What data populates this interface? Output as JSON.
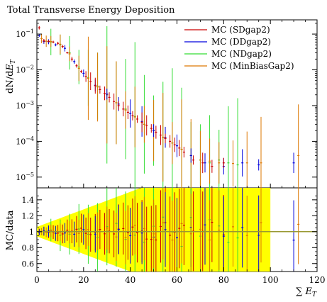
{
  "chart_data": [
    {
      "type": "scatter",
      "title": "Total Transverse Energy Deposition",
      "ylabel": "dN/dE_T",
      "yscale": "log",
      "xlim": [
        0,
        120
      ],
      "ylim": [
        5e-06,
        0.25
      ],
      "y_tick_labels": [
        "10^-5",
        "10^-4",
        "10^-3",
        "10^-2",
        "10^-1"
      ],
      "legend_position": "top-right",
      "series": [
        {
          "name": "MC (SDgap2)",
          "color": "#cc0000",
          "points": [
            [
              1,
              0.15
            ],
            [
              3,
              0.065
            ],
            [
              5,
              0.063
            ],
            [
              7,
              0.06
            ],
            [
              9,
              0.055
            ],
            [
              11,
              0.045
            ],
            [
              13,
              0.03
            ],
            [
              15,
              0.02
            ],
            [
              17,
              0.013
            ],
            [
              19,
              0.009
            ],
            [
              21,
              0.0065
            ],
            [
              23,
              0.0048
            ],
            [
              25,
              0.0036
            ],
            [
              27,
              0.0028
            ],
            [
              29,
              0.0022
            ],
            [
              31,
              0.0017
            ],
            [
              33,
              0.0013
            ],
            [
              35,
              0.001
            ],
            [
              37,
              0.0008
            ],
            [
              39,
              0.00065
            ],
            [
              41,
              0.00052
            ],
            [
              43,
              0.00042
            ],
            [
              45,
              0.00034
            ],
            [
              47,
              0.00028
            ],
            [
              49,
              0.00023
            ],
            [
              51,
              0.00018
            ],
            [
              53,
              0.00015
            ],
            [
              55,
              0.00012
            ],
            [
              57,
              0.0001
            ],
            [
              59,
              8e-05
            ],
            [
              61,
              6.5e-05
            ],
            [
              63,
              5e-05
            ],
            [
              67,
              3e-05
            ],
            [
              71,
              2.5e-05
            ],
            [
              75,
              2e-05
            ],
            [
              80,
              2.5e-05
            ]
          ],
          "err": 0.12
        },
        {
          "name": "MC (DDgap2)",
          "color": "#0000dd",
          "points": [
            [
              1,
              0.09
            ],
            [
              3,
              0.062
            ],
            [
              5,
              0.061
            ],
            [
              8,
              0.05
            ],
            [
              12,
              0.04
            ],
            [
              16,
              0.017
            ],
            [
              20,
              0.008
            ],
            [
              25,
              0.0037
            ],
            [
              30,
              0.0021
            ],
            [
              35,
              0.0011
            ],
            [
              40,
              0.0006
            ],
            [
              45,
              0.00036
            ],
            [
              50,
              0.0002
            ],
            [
              55,
              0.00013
            ],
            [
              60,
              7.5e-05
            ],
            [
              66,
              4e-05
            ],
            [
              72,
              2.5e-05
            ],
            [
              80,
              2e-05
            ],
            [
              88,
              2.5e-05
            ],
            [
              95,
              2.2e-05
            ],
            [
              110,
              2.5e-05
            ]
          ],
          "err": 0.18
        },
        {
          "name": "MC (NDgap2)",
          "color": "#33dd33",
          "points": [
            [
              6,
              0.06
            ],
            [
              10,
              0.05
            ],
            [
              14,
              0.03
            ],
            [
              18,
              0.012
            ],
            [
              22,
              0.006
            ],
            [
              26,
              0.0035
            ],
            [
              30,
              0.002
            ],
            [
              34,
              0.0012
            ],
            [
              38,
              0.0008
            ],
            [
              42,
              0.0005
            ],
            [
              46,
              0.0003
            ],
            [
              50,
              0.0002
            ],
            [
              54,
              0.00013
            ],
            [
              58,
              9e-05
            ],
            [
              62,
              6e-05
            ],
            [
              66,
              4e-05
            ],
            [
              70,
              3e-05
            ],
            [
              74,
              2.5e-05
            ],
            [
              78,
              3e-05
            ],
            [
              82,
              2.5e-05
            ],
            [
              86,
              2.2e-05
            ]
          ],
          "err": 0.9
        },
        {
          "name": "MC (MinBiasGap2)",
          "color": "#dd7700",
          "points": [
            [
              2,
              0.075
            ],
            [
              4,
              0.063
            ],
            [
              6,
              0.062
            ],
            [
              10,
              0.052
            ],
            [
              14,
              0.028
            ],
            [
              18,
              0.011
            ],
            [
              22,
              0.0058
            ],
            [
              26,
              0.0033
            ],
            [
              30,
              0.002
            ],
            [
              34,
              0.0012
            ],
            [
              38,
              0.00075
            ],
            [
              42,
              0.00048
            ],
            [
              46,
              0.0003
            ],
            [
              50,
              0.0002
            ],
            [
              54,
              0.00013
            ],
            [
              58,
              9e-05
            ],
            [
              62,
              6e-05
            ],
            [
              66,
              4e-05
            ],
            [
              70,
              3e-05
            ],
            [
              74,
              2.8e-05
            ],
            [
              78,
              2.5e-05
            ],
            [
              84,
              2.4e-05
            ],
            [
              90,
              2.5e-05
            ],
            [
              96,
              2.5e-05
            ],
            [
              112,
              4e-05
            ]
          ],
          "err": 0.6
        }
      ]
    },
    {
      "type": "scatter",
      "ylabel": "MC/data",
      "xlabel": "∑ E_T",
      "xlim": [
        0,
        120
      ],
      "ylim": [
        0.5,
        1.55
      ],
      "x_tick_labels": [
        "0",
        "20",
        "40",
        "60",
        "80",
        "100",
        "120"
      ],
      "y_tick_labels": [
        "0.6",
        "0.8",
        "1",
        "1.2",
        "1.4"
      ],
      "reference_line": 1.0,
      "band_color": "#ffff00",
      "line_color": "#999933"
    }
  ]
}
